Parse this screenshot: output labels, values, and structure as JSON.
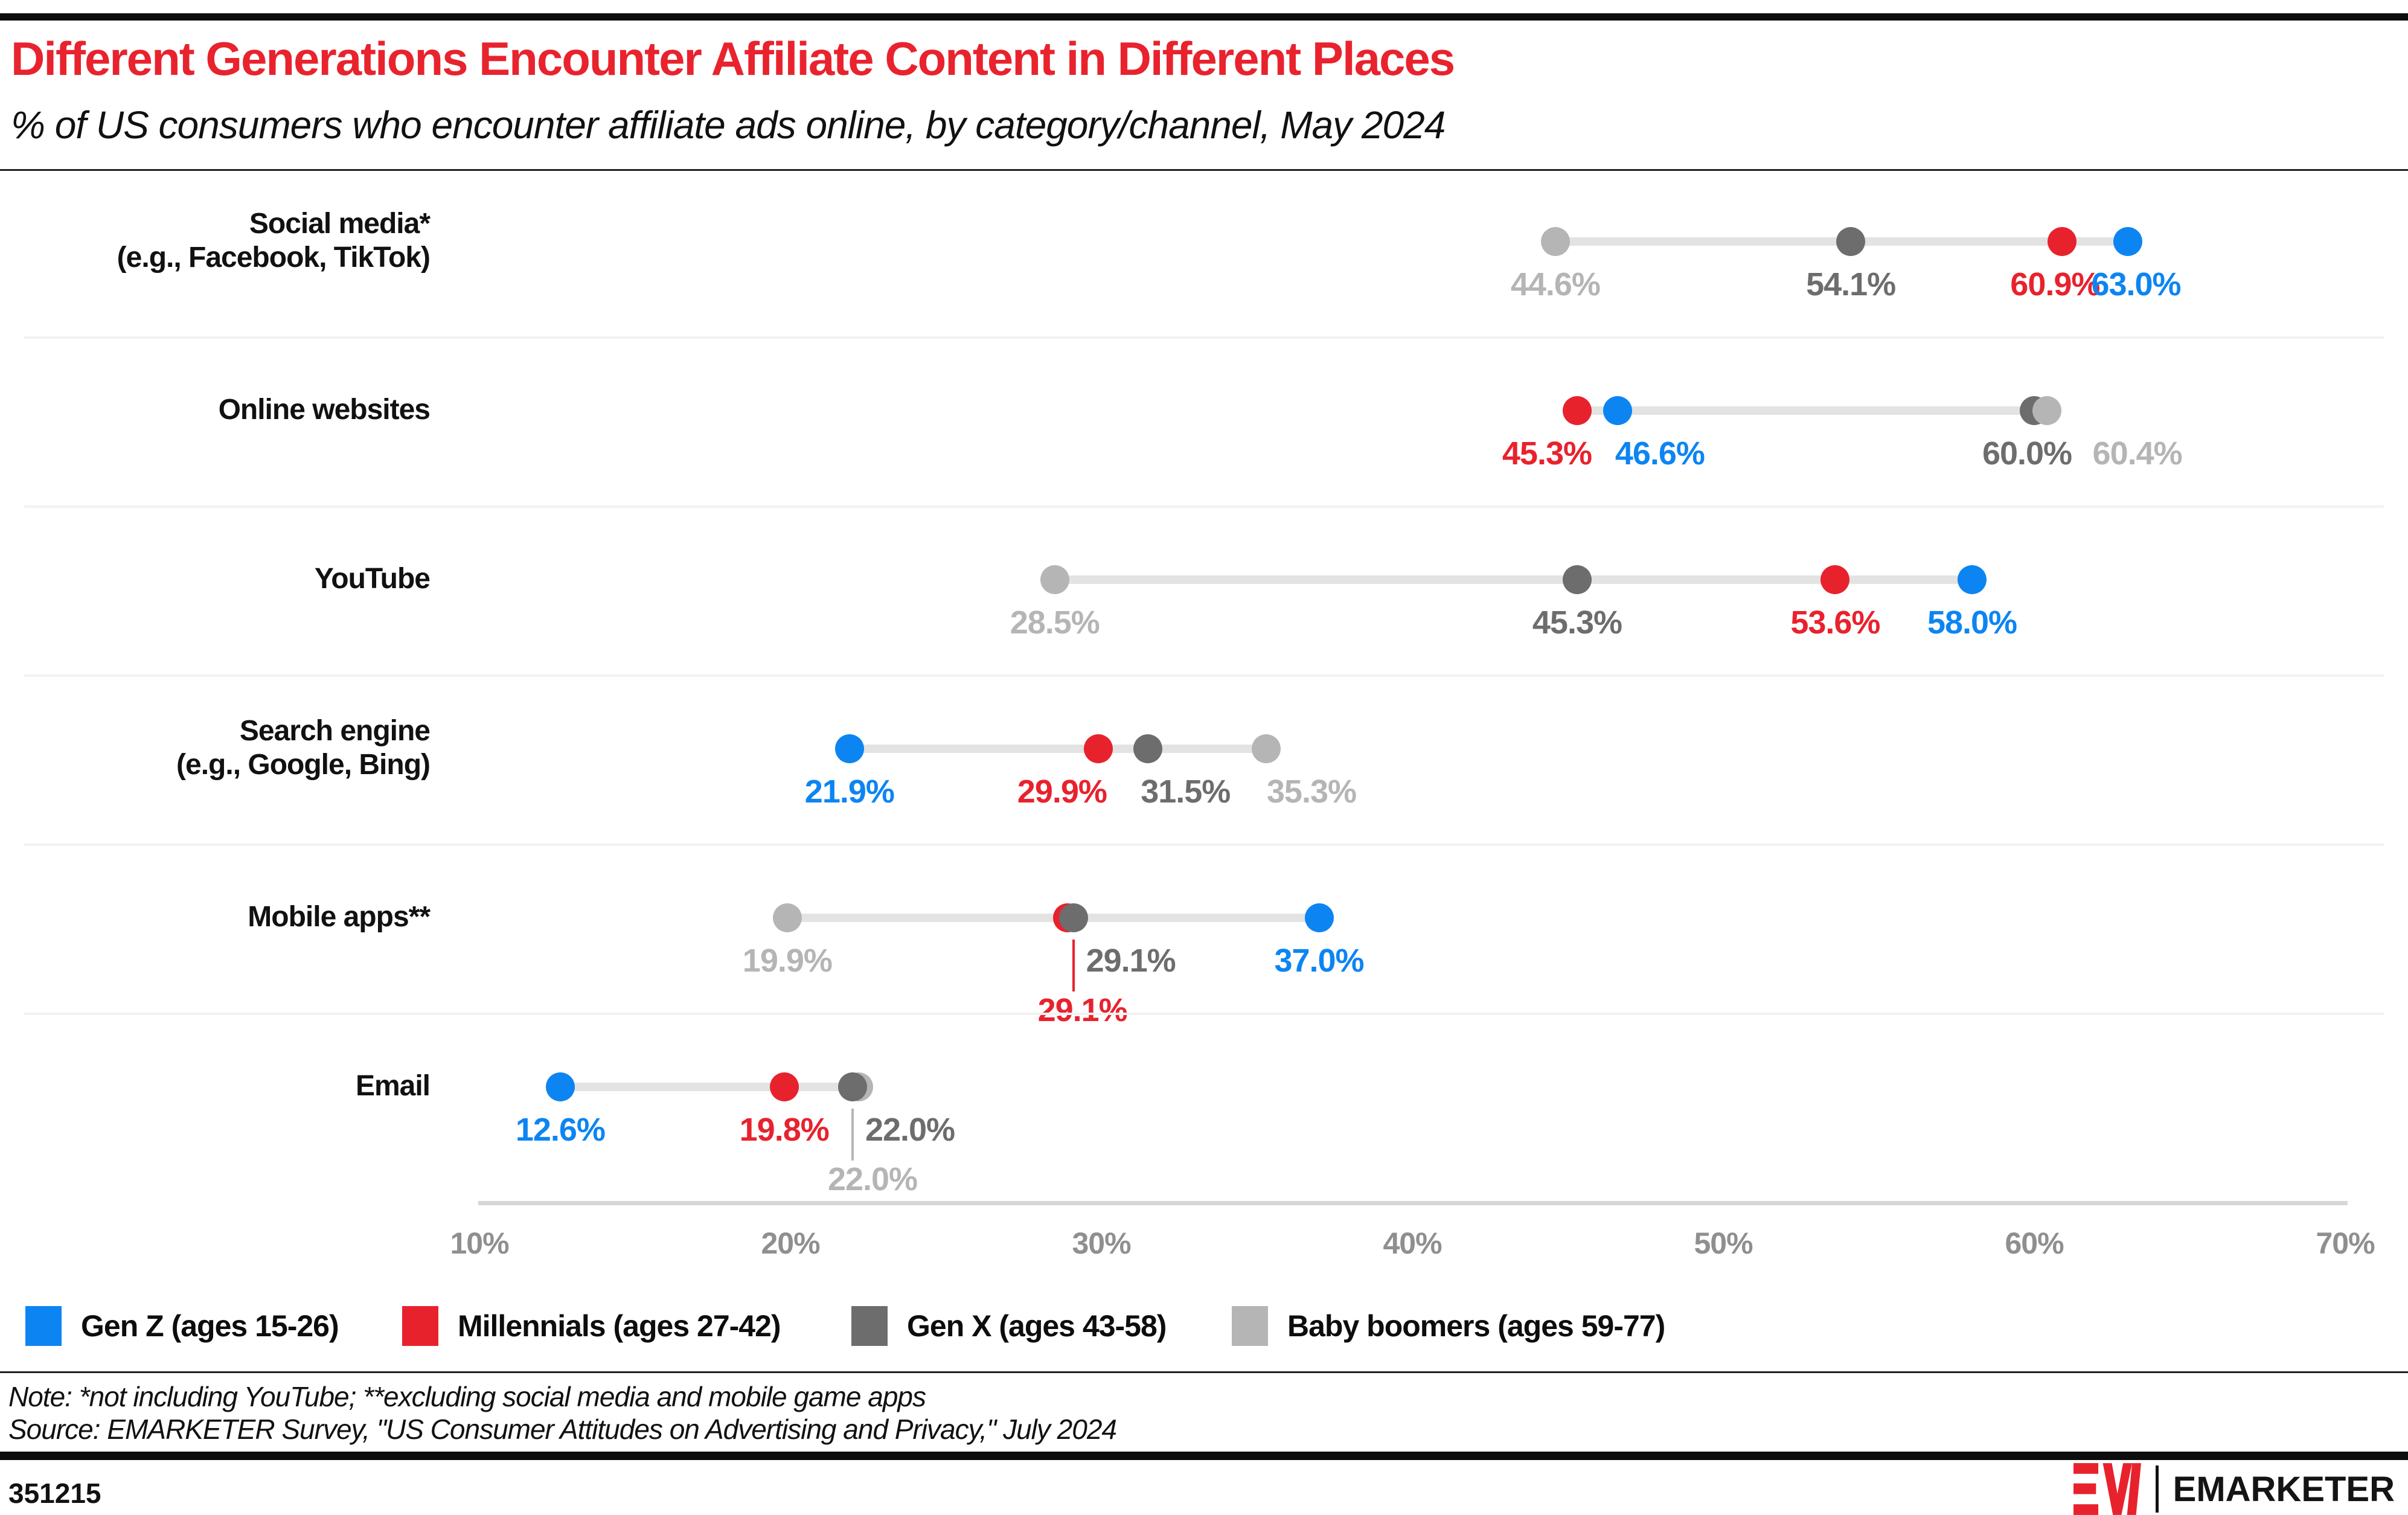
{
  "header": {
    "title": "Different Generations Encounter Affiliate Content in Different Places",
    "subtitle": "% of US consumers who encounter affiliate ads online, by category/channel, May 2024"
  },
  "chart_data": {
    "type": "scatter",
    "variant": "dot-plot-dumbbell",
    "title": "Different Generations Encounter Affiliate Content in Different Places",
    "xlabel": "% of US consumers",
    "x_axis": {
      "min": 10,
      "max": 70,
      "tick_labels": [
        "10%",
        "20%",
        "30%",
        "40%",
        "50%",
        "60%",
        "70%"
      ]
    },
    "series": [
      {
        "key": "genz",
        "name": "Gen Z (ages 15-26)",
        "color": "#0c85f2"
      },
      {
        "key": "mill",
        "name": "Millennials (ages 27-42)",
        "color": "#e8222d"
      },
      {
        "key": "genx",
        "name": "Gen X (ages 43-58)",
        "color": "#6d6d6d"
      },
      {
        "key": "bb",
        "name": "Baby boomers (ages 59-77)",
        "color": "#b5b5b5"
      }
    ],
    "rows": [
      {
        "id": "social-media",
        "label_lines": [
          "Social media*",
          "(e.g., Facebook, TikTok)"
        ],
        "points": [
          {
            "series": "bb",
            "value": 44.6,
            "label": "44.6%"
          },
          {
            "series": "genx",
            "value": 54.1,
            "label": "54.1%"
          },
          {
            "series": "mill",
            "value": 60.9,
            "label": "60.9%",
            "label_dx": -12
          },
          {
            "series": "genz",
            "value": 63.0,
            "label": "63.0%",
            "label_dx": 14
          }
        ]
      },
      {
        "id": "online-websites",
        "label_lines": [
          "Online websites"
        ],
        "points": [
          {
            "series": "mill",
            "value": 45.3,
            "label": "45.3%",
            "label_dx": -50
          },
          {
            "series": "genz",
            "value": 46.6,
            "label": "46.6%",
            "label_dx": 70
          },
          {
            "series": "genx",
            "value": 60.0,
            "label": "60.0%",
            "label_dx": -12
          },
          {
            "series": "bb",
            "value": 60.4,
            "label": "60.4%",
            "label_dx": 150
          }
        ]
      },
      {
        "id": "youtube",
        "label_lines": [
          "YouTube"
        ],
        "points": [
          {
            "series": "bb",
            "value": 28.5,
            "label": "28.5%"
          },
          {
            "series": "genx",
            "value": 45.3,
            "label": "45.3%"
          },
          {
            "series": "mill",
            "value": 53.6,
            "label": "53.6%"
          },
          {
            "series": "genz",
            "value": 58.0,
            "label": "58.0%"
          }
        ]
      },
      {
        "id": "search-engine",
        "label_lines": [
          "Search engine",
          "(e.g., Google, Bing)"
        ],
        "points": [
          {
            "series": "genz",
            "value": 21.9,
            "label": "21.9%"
          },
          {
            "series": "mill",
            "value": 29.9,
            "label": "29.9%",
            "label_dx": -60
          },
          {
            "series": "genx",
            "value": 31.5,
            "label": "31.5%",
            "label_dx": 62
          },
          {
            "series": "bb",
            "value": 35.3,
            "label": "35.3%",
            "label_dx": 75
          }
        ]
      },
      {
        "id": "mobile-apps",
        "label_lines": [
          "Mobile apps**"
        ],
        "points": [
          {
            "series": "bb",
            "value": 19.9,
            "label": "19.9%"
          },
          {
            "series": "mill",
            "value": 29.1,
            "label": "29.1%",
            "dot_dx": -10,
            "label_row": 2,
            "label_dx": 15,
            "callout": true
          },
          {
            "series": "genx",
            "value": 29.1,
            "label": "29.1%",
            "label_dx": 95
          },
          {
            "series": "genz",
            "value": 37.0,
            "label": "37.0%"
          }
        ]
      },
      {
        "id": "email",
        "label_lines": [
          "Email"
        ],
        "points": [
          {
            "series": "bb",
            "value": 22.0,
            "label": "22.0%",
            "dot_dx": 10,
            "label_row": 2,
            "label_dx": 33,
            "callout": true
          },
          {
            "series": "genx",
            "value": 22.0,
            "label": "22.0%",
            "label_dx": 95
          },
          {
            "series": "genz",
            "value": 12.6,
            "label": "12.6%"
          },
          {
            "series": "mill",
            "value": 19.8,
            "label": "19.8%"
          }
        ]
      }
    ]
  },
  "legend": {
    "items": [
      {
        "key": "genz",
        "label": "Gen Z (ages 15-26)"
      },
      {
        "key": "mill",
        "label": "Millennials (ages 27-42)"
      },
      {
        "key": "genx",
        "label": "Gen X (ages 43-58)"
      },
      {
        "key": "bb",
        "label": "Baby boomers (ages 59-77)"
      }
    ]
  },
  "notes": {
    "note": "Note: *not including YouTube; **excluding social media and mobile game apps",
    "source": "Source: EMARKETER Survey, \"US Consumer Attitudes on Advertising and Privacy,\" July 2024"
  },
  "footer": {
    "chart_id": "351215",
    "brand": "EMARKETER"
  }
}
